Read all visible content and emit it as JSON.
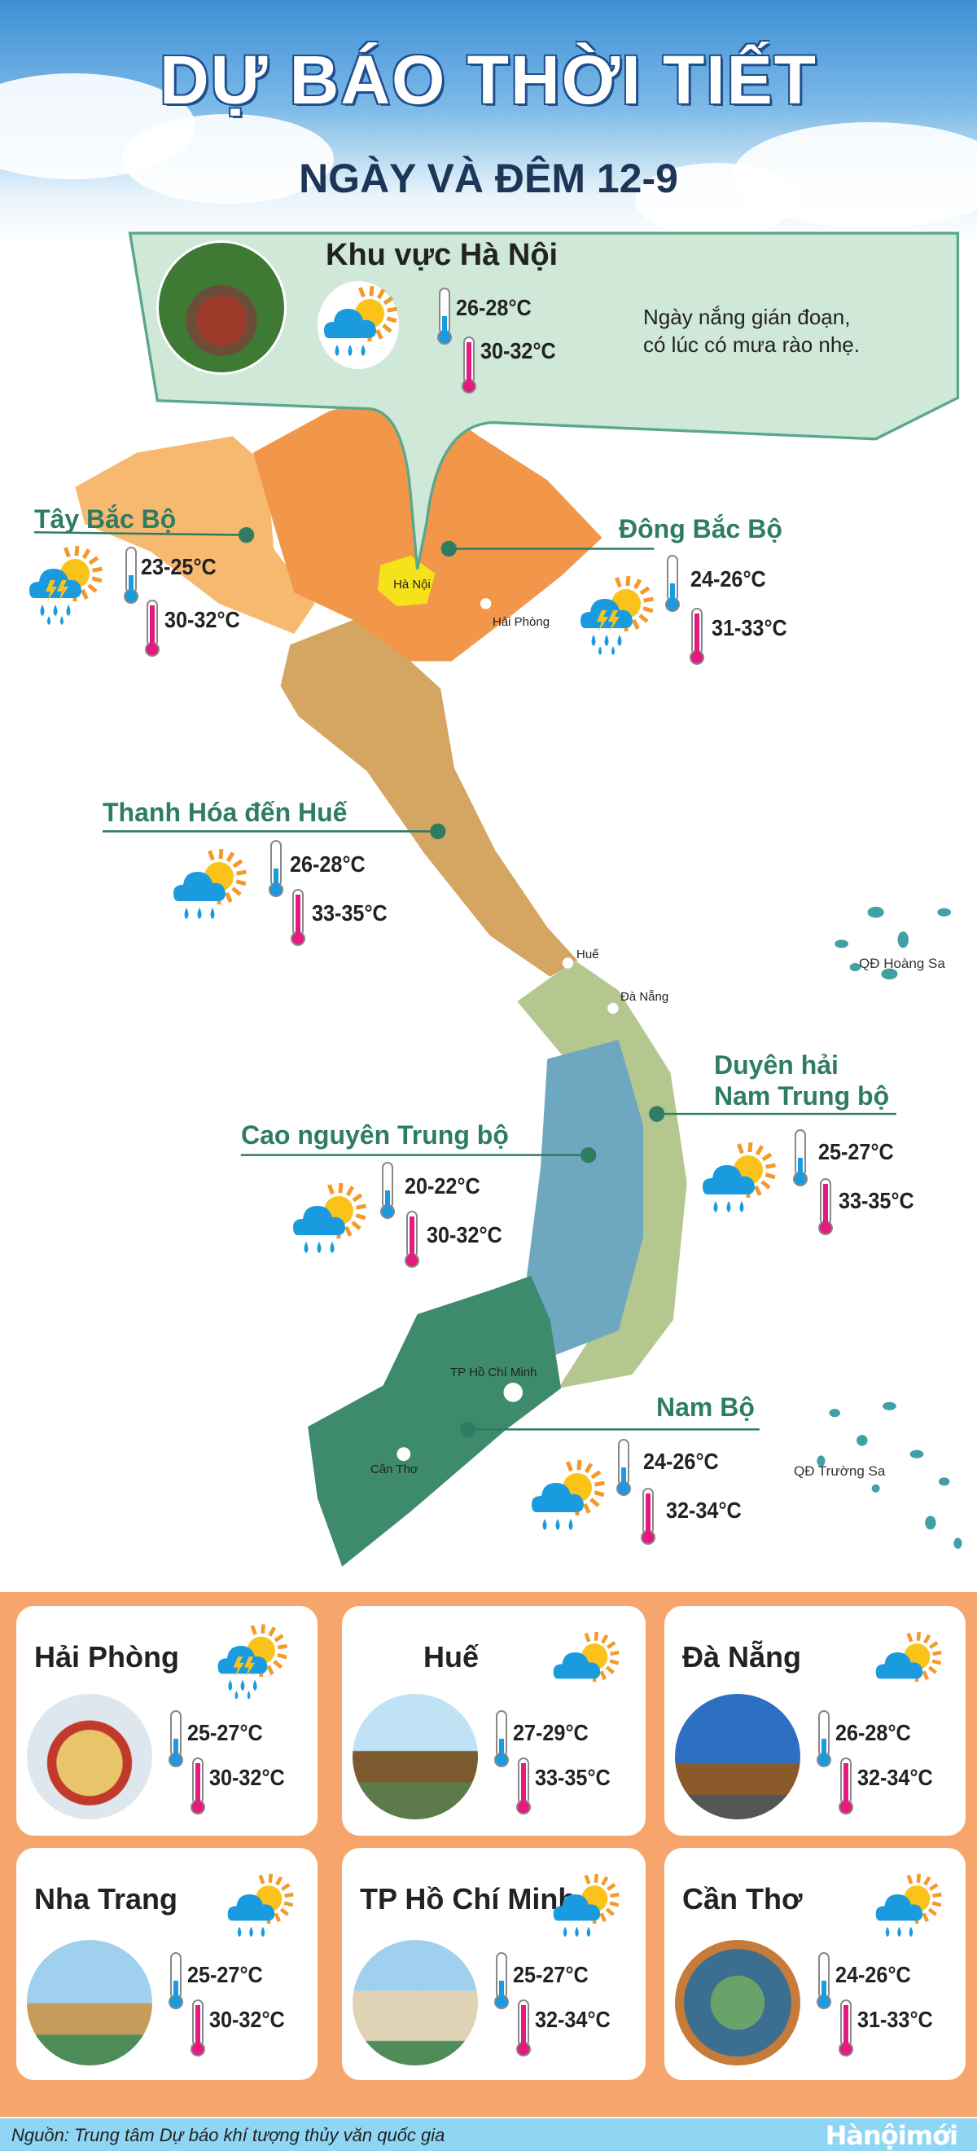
{
  "header": {
    "title": "DỰ BÁO THỜI TIẾT",
    "subtitle": "NGÀY VÀ ĐÊM 12-9"
  },
  "hanoi": {
    "title": "Khu vực Hà Nội",
    "icon": "sun-cloud-rain-icon",
    "low": "26-28°C",
    "high": "30-32°C",
    "description_line1": "Ngày nắng gián đoạn,",
    "description_line2": "có lúc có mưa rào nhẹ."
  },
  "colors": {
    "tay_bac": "#f7b870",
    "dong_bac": "#f2964a",
    "thanh_hoa_hue": "#d5a562",
    "duyen_hai": "#b3c78e",
    "cao_nguyen": "#6ea7c0",
    "nam_bo": "#3e8a6c",
    "band": "#f6a56c",
    "panel": "#cfe8d8",
    "label": "#2e7d62"
  },
  "regions": [
    {
      "name": "Tây Bắc Bộ",
      "icon": "sun-cloud-storm-rain-icon",
      "low": "23-25°C",
      "high": "30-32°C"
    },
    {
      "name": "Đông Bắc Bộ",
      "icon": "sun-cloud-storm-rain-icon",
      "low": "24-26°C",
      "high": "31-33°C"
    },
    {
      "name": "Thanh Hóa đến Huế",
      "icon": "sun-cloud-rain-icon",
      "low": "26-28°C",
      "high": "33-35°C"
    },
    {
      "name": "Duyên hải",
      "name2": "Nam Trung bộ",
      "icon": "sun-cloud-rain-icon",
      "low": "25-27°C",
      "high": "33-35°C"
    },
    {
      "name": "Cao nguyên Trung bộ",
      "icon": "sun-cloud-rain-icon",
      "low": "20-22°C",
      "high": "30-32°C"
    },
    {
      "name": "Nam Bộ",
      "icon": "sun-cloud-rain-icon",
      "low": "24-26°C",
      "high": "32-34°C"
    }
  ],
  "map_labels": {
    "ha_noi": "Hà Nội",
    "hai_phong": "Hải Phòng",
    "hue": "Huế",
    "da_nang": "Đà Nẵng",
    "hcm": "TP Hồ Chí Minh",
    "can_tho": "Cần Thơ",
    "hoang_sa": "QĐ Hoàng Sa",
    "truong_sa": "QĐ Trường Sa"
  },
  "cities": [
    {
      "name": "Hải Phòng",
      "icon": "sun-cloud-storm-rain-icon",
      "low": "25-27°C",
      "high": "30-32°C"
    },
    {
      "name": "Huế",
      "icon": "sun-cloud-icon",
      "low": "27-29°C",
      "high": "33-35°C"
    },
    {
      "name": "Đà Nẵng",
      "icon": "sun-cloud-icon",
      "low": "26-28°C",
      "high": "32-34°C"
    },
    {
      "name": "Nha Trang",
      "icon": "sun-cloud-rain-icon",
      "low": "25-27°C",
      "high": "30-32°C"
    },
    {
      "name": "TP Hồ Chí Minh",
      "icon": "sun-cloud-rain-icon",
      "low": "25-27°C",
      "high": "32-34°C"
    },
    {
      "name": "Cần Thơ",
      "icon": "sun-cloud-rain-icon",
      "low": "24-26°C",
      "high": "31-33°C"
    }
  ],
  "footer": {
    "source": "Nguồn: Trung tâm Dự báo khí tượng thủy văn quốc gia",
    "logo": "Hànộimới"
  }
}
